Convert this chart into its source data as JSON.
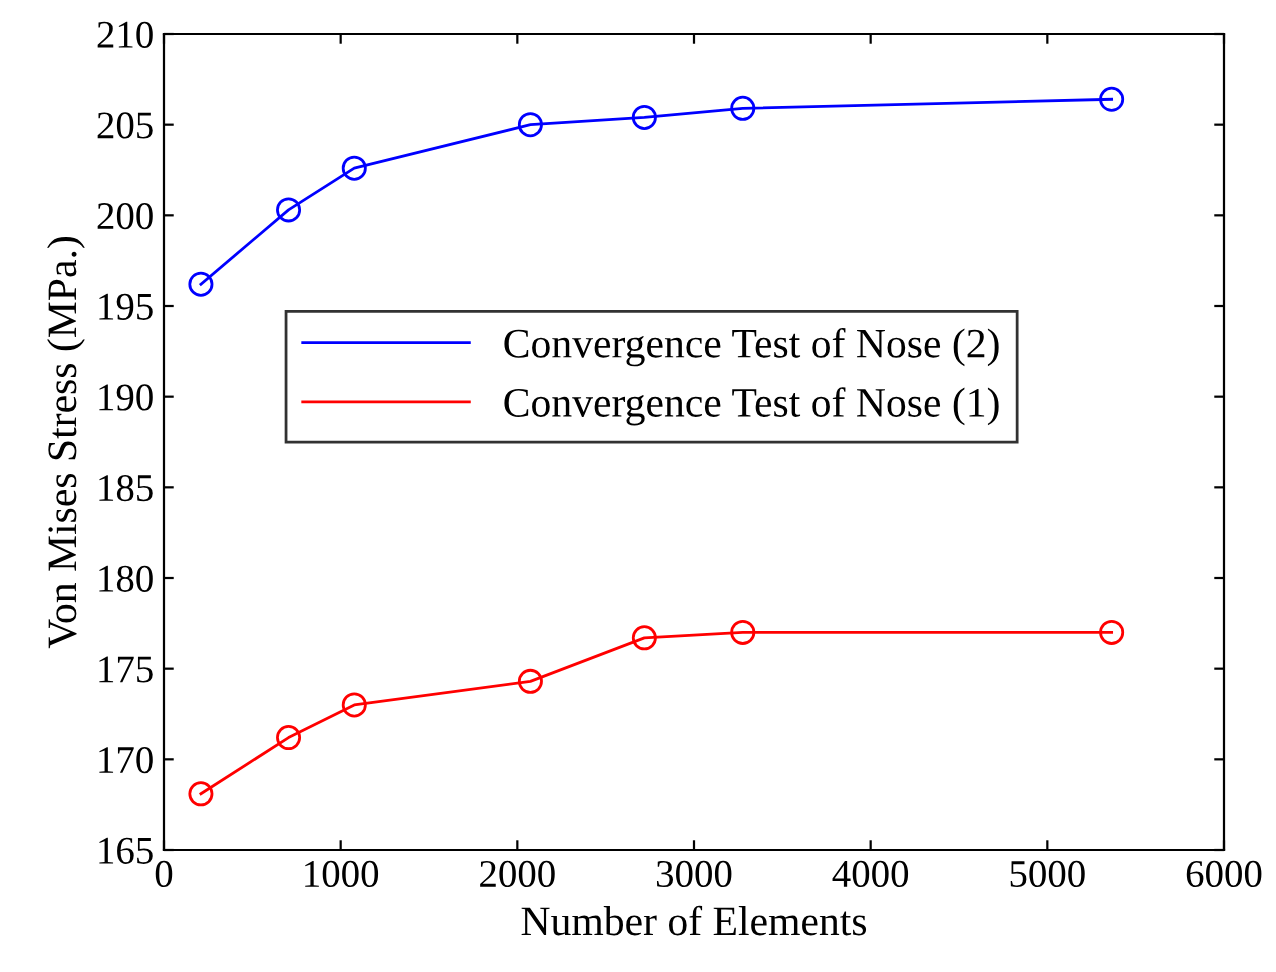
{
  "chart_data": {
    "type": "line",
    "xlabel": "Number of Elements",
    "ylabel": "Von Mises Stress (MPa.)",
    "xlim": [
      0,
      6000
    ],
    "xticks": [
      0,
      1000,
      2000,
      3000,
      4000,
      5000,
      6000
    ],
    "ylim": [
      165,
      210
    ],
    "yticks": [
      165,
      170,
      175,
      180,
      185,
      190,
      195,
      200,
      205,
      210
    ],
    "marker": "circle",
    "legend": "center",
    "grid": false,
    "series": [
      {
        "name": "Convergence Test of Nose (2)",
        "color": "#0000ff",
        "x": [
          209,
          705,
          1077,
          2074,
          2719,
          3276,
          5364
        ],
        "values": [
          196.2,
          200.3,
          202.6,
          205.0,
          205.4,
          205.9,
          206.4
        ]
      },
      {
        "name": "Convergence Test of Nose (1)",
        "color": "#ff0000",
        "x": [
          209,
          705,
          1077,
          2074,
          2719,
          3276,
          5364
        ],
        "values": [
          168.1,
          171.2,
          173.0,
          174.3,
          176.7,
          177.0,
          177.0
        ]
      }
    ]
  }
}
